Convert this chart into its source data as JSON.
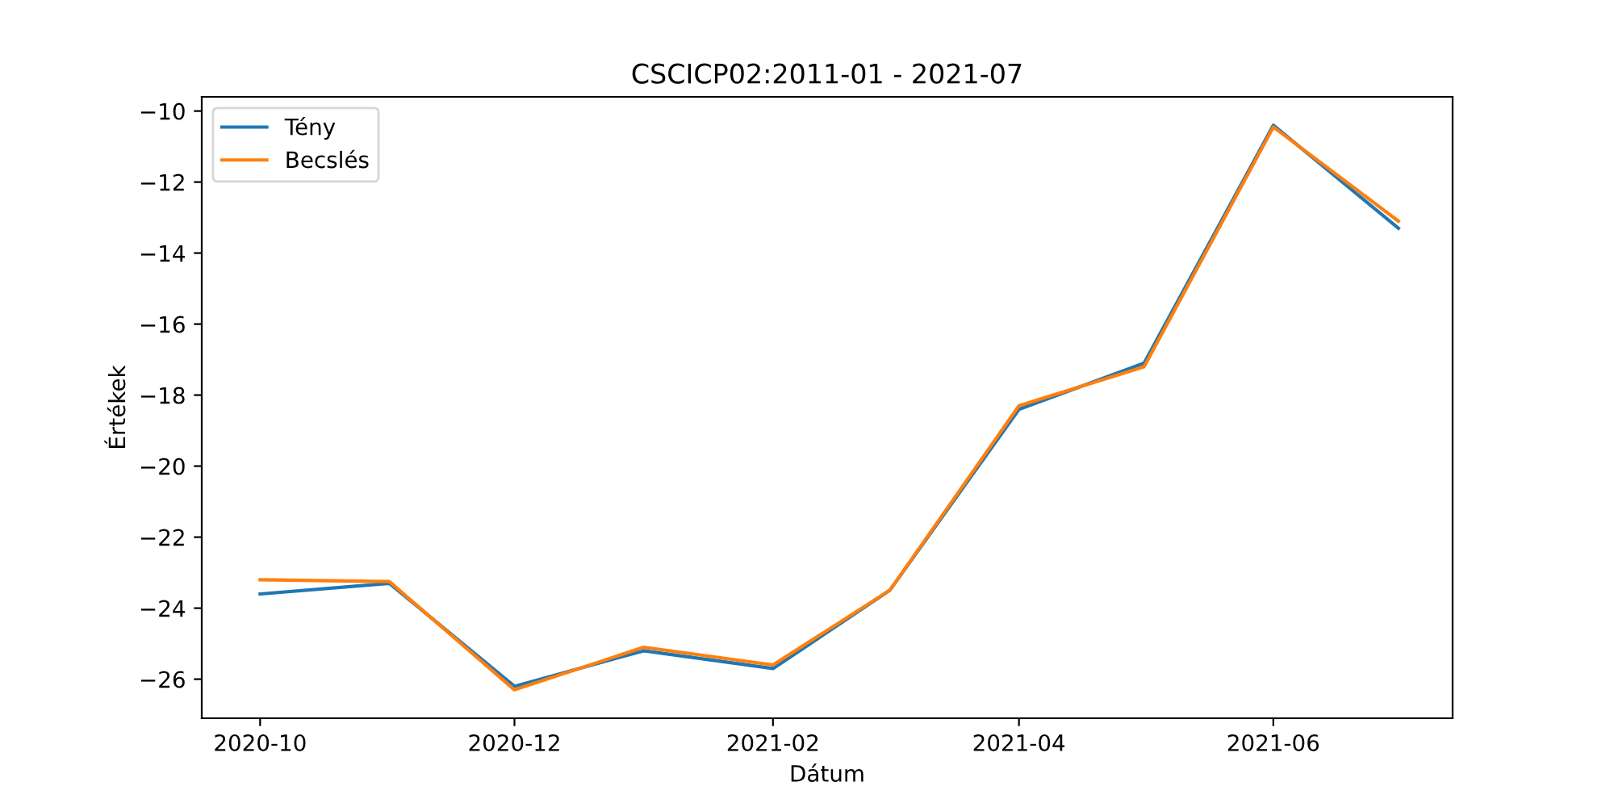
{
  "chart_data": {
    "type": "line",
    "title": "CSCICP02:2011-01 - 2021-07",
    "xlabel": "Dátum",
    "ylabel": "Értékek",
    "x": [
      "2020-10-01",
      "2020-11-01",
      "2020-12-01",
      "2021-01-01",
      "2021-02-01",
      "2021-03-01",
      "2021-04-01",
      "2021-05-01",
      "2021-06-01",
      "2021-07-01"
    ],
    "series": [
      {
        "name": "Tény",
        "color": "#1f77b4",
        "values": [
          -23.6,
          -23.3,
          -26.2,
          -25.2,
          -25.7,
          -23.5,
          -18.4,
          -17.1,
          -10.4,
          -13.3
        ]
      },
      {
        "name": "Becslés",
        "color": "#ff7f0e",
        "values": [
          -23.2,
          -23.25,
          -26.3,
          -25.1,
          -25.6,
          -23.5,
          -18.3,
          -17.2,
          -10.45,
          -13.1
        ]
      }
    ],
    "xlim": [
      "2020-09-17",
      "2021-07-14"
    ],
    "xticks": [
      {
        "value": "2020-10-01",
        "label": "2020-10"
      },
      {
        "value": "2020-12-01",
        "label": "2020-12"
      },
      {
        "value": "2021-02-01",
        "label": "2021-02"
      },
      {
        "value": "2021-04-01",
        "label": "2021-04"
      },
      {
        "value": "2021-06-01",
        "label": "2021-06"
      }
    ],
    "ylim": [
      -27.1,
      -9.6
    ],
    "yticks": [
      {
        "value": -26,
        "label": "−26"
      },
      {
        "value": -24,
        "label": "−24"
      },
      {
        "value": -22,
        "label": "−22"
      },
      {
        "value": -20,
        "label": "−20"
      },
      {
        "value": -18,
        "label": "−18"
      },
      {
        "value": -16,
        "label": "−16"
      },
      {
        "value": -14,
        "label": "−14"
      },
      {
        "value": -12,
        "label": "−12"
      },
      {
        "value": -10,
        "label": "−10"
      }
    ],
    "legend": "top left",
    "grid": false,
    "marker": "none",
    "line_style": "solid"
  }
}
